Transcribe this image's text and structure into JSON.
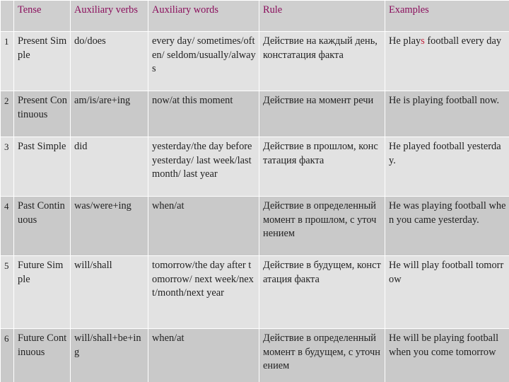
{
  "table": {
    "headers": [
      "",
      "Tense",
      "Auxiliary verbs",
      "Auxiliary words",
      "Rule",
      "Examples"
    ],
    "rows": [
      {
        "num": "1",
        "tense": "Present Simple",
        "aux_verbs": "do/does",
        "aux_words": "every day/ sometimes/often/ seldom/usually/always",
        "rule": "Действие на каждый день, констатация факта",
        "example_pre": "He play",
        "example_hl": "s",
        "example_post": " football every day"
      },
      {
        "num": "2",
        "tense": "Present Continuous",
        "aux_verbs": "am/is/are+ing",
        "aux_words": "now/at this moment",
        "rule": "Действие на момент речи",
        "example": "He is playing football now."
      },
      {
        "num": "3",
        "tense": "Past Simple",
        "aux_verbs": "did",
        "aux_words": "yesterday/the day before yesterday/ last week/last month/ last year",
        "rule": "Действие в прошлом, констатация факта",
        "example": "He played football yesterday."
      },
      {
        "num": "4",
        "tense": "Past Continuous",
        "aux_verbs": "was/were+ing",
        "aux_words": "when/at",
        "rule": "Действие в определенный момент в прошлом, с уточнением",
        "example": "He was playing football when you came yesterday."
      },
      {
        "num": "5",
        "tense": "Future Simple",
        "aux_verbs": "will/shall",
        "aux_words": "tomorrow/the day after tomorrow/ next week/next/month/next year",
        "rule": "Действие в будущем, констатация факта",
        "example": "He will play football tomorrow"
      },
      {
        "num": "6",
        "tense": "Future Continuous",
        "aux_verbs": "will/shall+be+ing",
        "aux_words": "when/at",
        "rule": "Действие в определенный момент в будущем, с уточнением",
        "example": "He will be playing football when you come tomorrow"
      }
    ]
  }
}
